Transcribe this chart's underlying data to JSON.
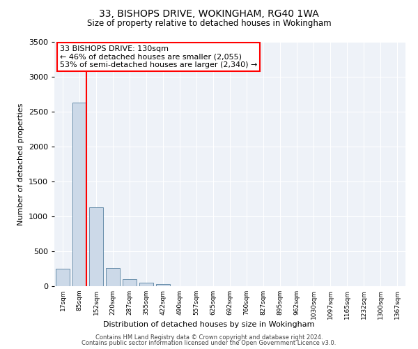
{
  "title1": "33, BISHOPS DRIVE, WOKINGHAM, RG40 1WA",
  "title2": "Size of property relative to detached houses in Wokingham",
  "xlabel": "Distribution of detached houses by size in Wokingham",
  "ylabel": "Number of detached properties",
  "categories": [
    "17sqm",
    "85sqm",
    "152sqm",
    "220sqm",
    "287sqm",
    "355sqm",
    "422sqm",
    "490sqm",
    "557sqm",
    "625sqm",
    "692sqm",
    "760sqm",
    "827sqm",
    "895sqm",
    "962sqm",
    "1030sqm",
    "1097sqm",
    "1165sqm",
    "1232sqm",
    "1300sqm",
    "1367sqm"
  ],
  "values": [
    250,
    2630,
    1130,
    265,
    100,
    55,
    30,
    5,
    2,
    1,
    1,
    0,
    0,
    0,
    0,
    0,
    0,
    0,
    0,
    0,
    0
  ],
  "bar_color": "#ccd9e8",
  "bar_edge_color": "#5580a0",
  "red_line_x": 1.42,
  "annotation_line1": "33 BISHOPS DRIVE: 130sqm",
  "annotation_line2": "← 46% of detached houses are smaller (2,055)",
  "annotation_line3": "53% of semi-detached houses are larger (2,340) →",
  "ylim": [
    0,
    3500
  ],
  "yticks": [
    0,
    500,
    1000,
    1500,
    2000,
    2500,
    3000,
    3500
  ],
  "background_color": "#eef2f8",
  "grid_color": "#ffffff",
  "footer1": "Contains HM Land Registry data © Crown copyright and database right 2024.",
  "footer2": "Contains public sector information licensed under the Open Government Licence v3.0."
}
